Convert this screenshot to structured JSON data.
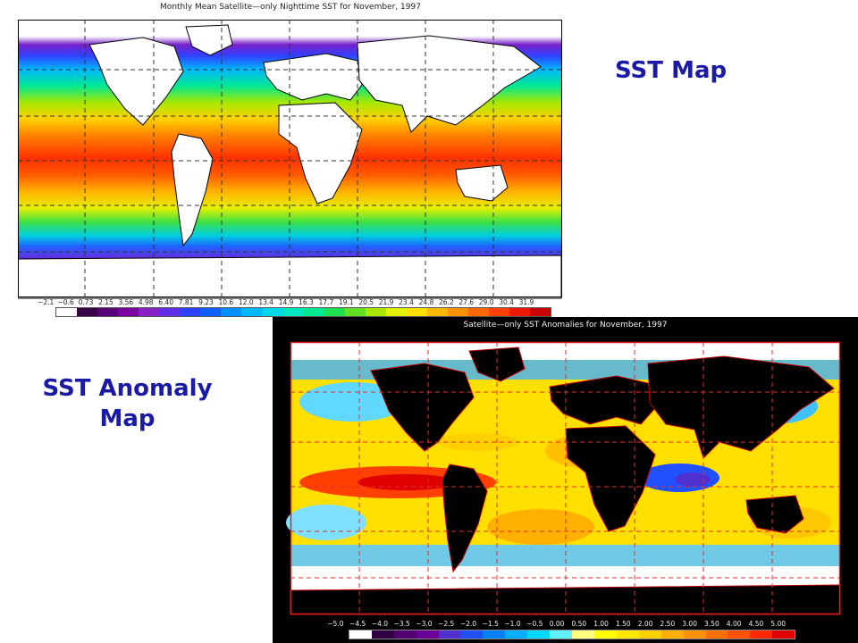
{
  "slide": {
    "sst_label": "SST Map",
    "anomaly_label_line1": "SST Anomaly",
    "anomaly_label_line2": "Map"
  },
  "sst_map": {
    "title": "Monthly Mean Satellite—only Nighttime SST for November, 1997",
    "colorbar_ticks": [
      "−2.1",
      "−0.6",
      "0.73",
      "2.15",
      "3.56",
      "4.98",
      "6.40",
      "7.81",
      "9.23",
      "10.6",
      "12.0",
      "13.4",
      "14.9",
      "16.3",
      "17.7",
      "19.1",
      "20.5",
      "21.9",
      "23.4",
      "24.8",
      "26.2",
      "27.6",
      "29.0",
      "30.4",
      "31.9"
    ],
    "colorbar_colors": [
      "#ffffff",
      "#3a0048",
      "#5a007a",
      "#7a00a0",
      "#8a20c8",
      "#6030e8",
      "#3040ff",
      "#1060ff",
      "#0090ff",
      "#00b8ff",
      "#00d8e8",
      "#00e8c0",
      "#00e890",
      "#20e050",
      "#60e020",
      "#a8e800",
      "#e0f000",
      "#ffe000",
      "#ffb800",
      "#ff9000",
      "#ff6800",
      "#ff4000",
      "#f01800",
      "#c80000"
    ]
  },
  "anomaly_map": {
    "title": "Satellite—only SST Anomalies for November, 1997",
    "colorbar_ticks": [
      "−5.0",
      "−4.5",
      "−4.0",
      "−3.5",
      "−3.0",
      "−2.5",
      "−2.0",
      "−1.5",
      "−1.0",
      "−0.5",
      "0.00",
      "0.50",
      "1.00",
      "1.50",
      "2.00",
      "2.50",
      "3.00",
      "3.50",
      "4.00",
      "4.50",
      "5.00"
    ],
    "colorbar_colors": [
      "#ffffff",
      "#300040",
      "#500070",
      "#6a0098",
      "#5030d0",
      "#2050ff",
      "#0080ff",
      "#00b0ff",
      "#00d8ff",
      "#60f0ff",
      "#ffff80",
      "#ffff00",
      "#ffe800",
      "#ffd000",
      "#ffb000",
      "#ff9000",
      "#ff7000",
      "#ff5000",
      "#ff2800",
      "#e00000"
    ]
  }
}
